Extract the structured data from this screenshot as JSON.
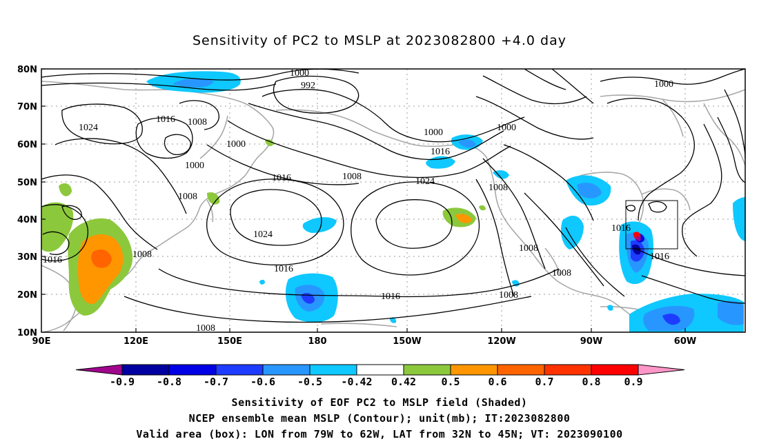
{
  "title": "Sensitivity of PC2 to MSLP at 2023082800 +4.0 day",
  "map": {
    "lat_labels": [
      "80N",
      "70N",
      "60N",
      "50N",
      "40N",
      "30N",
      "20N",
      "10N"
    ],
    "lon_labels": [
      "90E",
      "120E",
      "150E",
      "180",
      "150W",
      "120W",
      "90W",
      "60W"
    ],
    "contour_labels": [
      "1000",
      "992",
      "1000",
      "1024",
      "1016",
      "1008",
      "1000",
      "1000",
      "1000",
      "1016",
      "1008",
      "1016",
      "1024",
      "1008",
      "1008",
      "1000",
      "1024",
      "1016",
      "1016",
      "1016",
      "1008",
      "1008",
      "1008",
      "1016",
      "1016",
      "1008",
      "1008"
    ],
    "valid_box": {
      "lon_from": "79W",
      "lon_to": "62W",
      "lat_from": "32N",
      "lat_to": "45N"
    }
  },
  "colorbar": {
    "labels": [
      "-0.9",
      "-0.8",
      "-0.7",
      "-0.6",
      "-0.5",
      "-0.42",
      "0.42",
      "0.5",
      "0.6",
      "0.7",
      "0.8",
      "0.9"
    ],
    "colors": [
      "#a0068c",
      "#0000a0",
      "#0000e6",
      "#1e3cff",
      "#2896ff",
      "#0fc8ff",
      "#ffffff",
      "#8cc83c",
      "#ff9600",
      "#ff6400",
      "#ff3200",
      "#ff0000",
      "#ff96c8"
    ]
  },
  "captions": {
    "line1": "Sensitivity of EOF PC2 to MSLP field (Shaded)",
    "line2": "NCEP ensemble mean MSLP (Contour); unit(mb); IT:2023082800",
    "line3": "Valid area (box): LON from 79W to 62W, LAT from 32N to 45N; VT: 2023090100"
  }
}
